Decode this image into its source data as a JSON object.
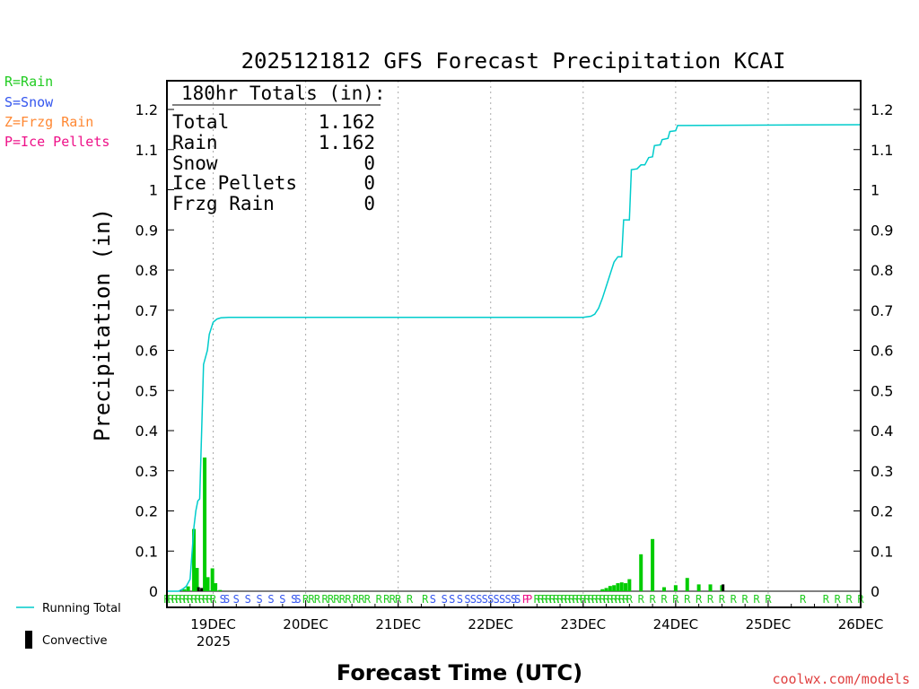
{
  "chart_data": {
    "type": "bar",
    "title": "2025121812 GFS Forecast Precipitation KCAI",
    "xlabel": "Forecast Time (UTC)",
    "ylabel": "Precipitation (in)",
    "ylim": [
      0,
      1.27
    ],
    "yticks": [
      "0",
      "0.1",
      "0.2",
      "0.3",
      "0.4",
      "0.5",
      "0.6",
      "0.7",
      "0.8",
      "0.9",
      "1",
      "1.1",
      "1.2"
    ],
    "ytick_values": [
      0,
      0.1,
      0.2,
      0.3,
      0.4,
      0.5,
      0.6,
      0.7,
      0.8,
      0.9,
      1,
      1.1,
      1.2
    ],
    "x_range_hours": [
      0,
      180
    ],
    "date_labels": [
      {
        "hour": 12,
        "label": "19DEC"
      },
      {
        "hour": 36,
        "label": "20DEC"
      },
      {
        "hour": 60,
        "label": "21DEC"
      },
      {
        "hour": 84,
        "label": "22DEC"
      },
      {
        "hour": 108,
        "label": "23DEC"
      },
      {
        "hour": 132,
        "label": "24DEC"
      },
      {
        "hour": 156,
        "label": "25DEC"
      },
      {
        "hour": 180,
        "label": "26DEC"
      }
    ],
    "year_label": "2025",
    "legend_types": [
      {
        "label": "R=Rain",
        "color": "#22cc22"
      },
      {
        "label": "S=Snow",
        "color": "#3355ee"
      },
      {
        "label": "Z=Frzg Rain",
        "color": "#ff8833"
      },
      {
        "label": "P=Ice Pellets",
        "color": "#ee1188"
      }
    ],
    "legend_series": [
      {
        "label": "Running Total",
        "color": "#00cccc"
      },
      {
        "label": "Convective",
        "color": "#000000"
      }
    ],
    "totals": {
      "header": "180hr Totals (in):",
      "rows": [
        {
          "label": "Total",
          "value": "1.162"
        },
        {
          "label": "Rain",
          "value": "1.162"
        },
        {
          "label": "Snow",
          "value": "0"
        },
        {
          "label": "Ice Pellets",
          "value": "0"
        },
        {
          "label": "Frzg Rain",
          "value": "0"
        }
      ]
    },
    "bars": [
      {
        "hour": 4.5,
        "value": 0.005
      },
      {
        "hour": 5.5,
        "value": 0.012
      },
      {
        "hour": 7.0,
        "value": 0.155
      },
      {
        "hour": 7.8,
        "value": 0.058
      },
      {
        "hour": 9.8,
        "value": 0.333
      },
      {
        "hour": 10.6,
        "value": 0.035
      },
      {
        "hour": 11.8,
        "value": 0.057
      },
      {
        "hour": 12.6,
        "value": 0.02
      },
      {
        "hour": 13.8,
        "value": 0.003
      },
      {
        "hour": 113.0,
        "value": 0.005
      },
      {
        "hour": 114.0,
        "value": 0.008
      },
      {
        "hour": 115.0,
        "value": 0.013
      },
      {
        "hour": 116.0,
        "value": 0.015
      },
      {
        "hour": 117.0,
        "value": 0.02
      },
      {
        "hour": 118.0,
        "value": 0.022
      },
      {
        "hour": 119.0,
        "value": 0.02
      },
      {
        "hour": 120.0,
        "value": 0.03
      },
      {
        "hour": 123.0,
        "value": 0.092
      },
      {
        "hour": 126.0,
        "value": 0.13
      },
      {
        "hour": 129.0,
        "value": 0.01
      },
      {
        "hour": 132.0,
        "value": 0.015
      },
      {
        "hour": 135.0,
        "value": 0.033
      },
      {
        "hour": 138.0,
        "value": 0.017
      },
      {
        "hour": 141.0,
        "value": 0.017
      },
      {
        "hour": 144.0,
        "value": 0.015
      }
    ],
    "convective_bars": [
      {
        "hour": 8.2,
        "value": 0.01
      },
      {
        "hour": 9.0,
        "value": 0.008
      },
      {
        "hour": 144.3,
        "value": 0.017
      }
    ],
    "running_total": [
      [
        0,
        0
      ],
      [
        3,
        0
      ],
      [
        4,
        0.005
      ],
      [
        5,
        0.012
      ],
      [
        6,
        0.03
      ],
      [
        7,
        0.16
      ],
      [
        7.5,
        0.2
      ],
      [
        8,
        0.225
      ],
      [
        8.5,
        0.23
      ],
      [
        9,
        0.4
      ],
      [
        9.5,
        0.565
      ],
      [
        10.5,
        0.6
      ],
      [
        11,
        0.64
      ],
      [
        12,
        0.67
      ],
      [
        13,
        0.678
      ],
      [
        14,
        0.681
      ],
      [
        16,
        0.682
      ],
      [
        108,
        0.682
      ],
      [
        110,
        0.685
      ],
      [
        111,
        0.69
      ],
      [
        112,
        0.705
      ],
      [
        113,
        0.73
      ],
      [
        114,
        0.76
      ],
      [
        115,
        0.79
      ],
      [
        116,
        0.82
      ],
      [
        117,
        0.833
      ],
      [
        118,
        0.833
      ],
      [
        118.5,
        0.925
      ],
      [
        120,
        0.925
      ],
      [
        120.5,
        1.05
      ],
      [
        122,
        1.052
      ],
      [
        123,
        1.062
      ],
      [
        124,
        1.062
      ],
      [
        125,
        1.08
      ],
      [
        126,
        1.082
      ],
      [
        126.5,
        1.11
      ],
      [
        128,
        1.112
      ],
      [
        128.5,
        1.125
      ],
      [
        130,
        1.128
      ],
      [
        130.5,
        1.145
      ],
      [
        132,
        1.147
      ],
      [
        132.5,
        1.16
      ],
      [
        180,
        1.162
      ]
    ],
    "ptype_strip": [
      {
        "hour": 0.0,
        "code": "R"
      },
      {
        "hour": 1.0,
        "code": "R"
      },
      {
        "hour": 2.0,
        "code": "R"
      },
      {
        "hour": 3.0,
        "code": "R"
      },
      {
        "hour": 4.0,
        "code": "R"
      },
      {
        "hour": 5.0,
        "code": "R"
      },
      {
        "hour": 6.0,
        "code": "R"
      },
      {
        "hour": 7.0,
        "code": "R"
      },
      {
        "hour": 8.0,
        "code": "R"
      },
      {
        "hour": 9.0,
        "code": "R"
      },
      {
        "hour": 10.0,
        "code": "R"
      },
      {
        "hour": 11.0,
        "code": "R"
      },
      {
        "hour": 12.0,
        "code": "R"
      },
      {
        "hour": 14.5,
        "code": "S"
      },
      {
        "hour": 15.5,
        "code": "S"
      },
      {
        "hour": 18.0,
        "code": "S"
      },
      {
        "hour": 21.0,
        "code": "S"
      },
      {
        "hour": 24.0,
        "code": "S"
      },
      {
        "hour": 27.0,
        "code": "S"
      },
      {
        "hour": 30.0,
        "code": "S"
      },
      {
        "hour": 33.0,
        "code": "S"
      },
      {
        "hour": 34.0,
        "code": "S"
      },
      {
        "hour": 36.0,
        "code": "R"
      },
      {
        "hour": 37.5,
        "code": "R"
      },
      {
        "hour": 39.0,
        "code": "R"
      },
      {
        "hour": 41.0,
        "code": "R"
      },
      {
        "hour": 42.5,
        "code": "R"
      },
      {
        "hour": 44.0,
        "code": "R"
      },
      {
        "hour": 45.5,
        "code": "R"
      },
      {
        "hour": 47.0,
        "code": "R"
      },
      {
        "hour": 49.0,
        "code": "R"
      },
      {
        "hour": 50.5,
        "code": "R"
      },
      {
        "hour": 52.0,
        "code": "R"
      },
      {
        "hour": 55.0,
        "code": "R"
      },
      {
        "hour": 57.0,
        "code": "R"
      },
      {
        "hour": 58.5,
        "code": "R"
      },
      {
        "hour": 60.0,
        "code": "R"
      },
      {
        "hour": 63.0,
        "code": "R"
      },
      {
        "hour": 67.0,
        "code": "R"
      },
      {
        "hour": 69.0,
        "code": "S"
      },
      {
        "hour": 72.0,
        "code": "S"
      },
      {
        "hour": 74.0,
        "code": "S"
      },
      {
        "hour": 76.0,
        "code": "S"
      },
      {
        "hour": 78.0,
        "code": "S"
      },
      {
        "hour": 79.5,
        "code": "S"
      },
      {
        "hour": 81.0,
        "code": "S"
      },
      {
        "hour": 82.5,
        "code": "S"
      },
      {
        "hour": 84.0,
        "code": "S"
      },
      {
        "hour": 85.5,
        "code": "S"
      },
      {
        "hour": 87.0,
        "code": "S"
      },
      {
        "hour": 88.5,
        "code": "S"
      },
      {
        "hour": 90.0,
        "code": "S"
      },
      {
        "hour": 91.0,
        "code": "S"
      },
      {
        "hour": 93.0,
        "code": "P"
      },
      {
        "hour": 94.0,
        "code": "P"
      },
      {
        "hour": 96.0,
        "code": "R"
      },
      {
        "hour": 97.0,
        "code": "R"
      },
      {
        "hour": 98.0,
        "code": "R"
      },
      {
        "hour": 99.0,
        "code": "R"
      },
      {
        "hour": 100.0,
        "code": "R"
      },
      {
        "hour": 101.0,
        "code": "R"
      },
      {
        "hour": 102.0,
        "code": "R"
      },
      {
        "hour": 103.0,
        "code": "R"
      },
      {
        "hour": 104.0,
        "code": "R"
      },
      {
        "hour": 105.0,
        "code": "R"
      },
      {
        "hour": 106.0,
        "code": "R"
      },
      {
        "hour": 107.0,
        "code": "R"
      },
      {
        "hour": 108.0,
        "code": "R"
      },
      {
        "hour": 109.0,
        "code": "R"
      },
      {
        "hour": 110.0,
        "code": "R"
      },
      {
        "hour": 111.0,
        "code": "R"
      },
      {
        "hour": 112.0,
        "code": "R"
      },
      {
        "hour": 113.0,
        "code": "R"
      },
      {
        "hour": 114.0,
        "code": "R"
      },
      {
        "hour": 115.0,
        "code": "R"
      },
      {
        "hour": 116.0,
        "code": "R"
      },
      {
        "hour": 117.0,
        "code": "R"
      },
      {
        "hour": 118.0,
        "code": "R"
      },
      {
        "hour": 119.0,
        "code": "R"
      },
      {
        "hour": 120.0,
        "code": "R"
      },
      {
        "hour": 123.0,
        "code": "R"
      },
      {
        "hour": 126.0,
        "code": "R"
      },
      {
        "hour": 129.0,
        "code": "R"
      },
      {
        "hour": 132.0,
        "code": "R"
      },
      {
        "hour": 135.0,
        "code": "R"
      },
      {
        "hour": 138.0,
        "code": "R"
      },
      {
        "hour": 141.0,
        "code": "R"
      },
      {
        "hour": 144.0,
        "code": "R"
      },
      {
        "hour": 147.0,
        "code": "R"
      },
      {
        "hour": 150.0,
        "code": "R"
      },
      {
        "hour": 153.0,
        "code": "R"
      },
      {
        "hour": 156.0,
        "code": "R"
      },
      {
        "hour": 165.0,
        "code": "R"
      },
      {
        "hour": 171.0,
        "code": "R"
      },
      {
        "hour": 174.0,
        "code": "R"
      },
      {
        "hour": 177.0,
        "code": "R"
      },
      {
        "hour": 180.0,
        "code": "R"
      }
    ]
  },
  "colors": {
    "rain": "#22cc22",
    "snow": "#3355ee",
    "frzg_rain": "#ff8833",
    "ice_pellets": "#ee1188",
    "running_total": "#00cccc",
    "convective": "#000000",
    "bar": "#00cc00",
    "credit": "#e04040"
  },
  "credit": "coolwx.com/models"
}
